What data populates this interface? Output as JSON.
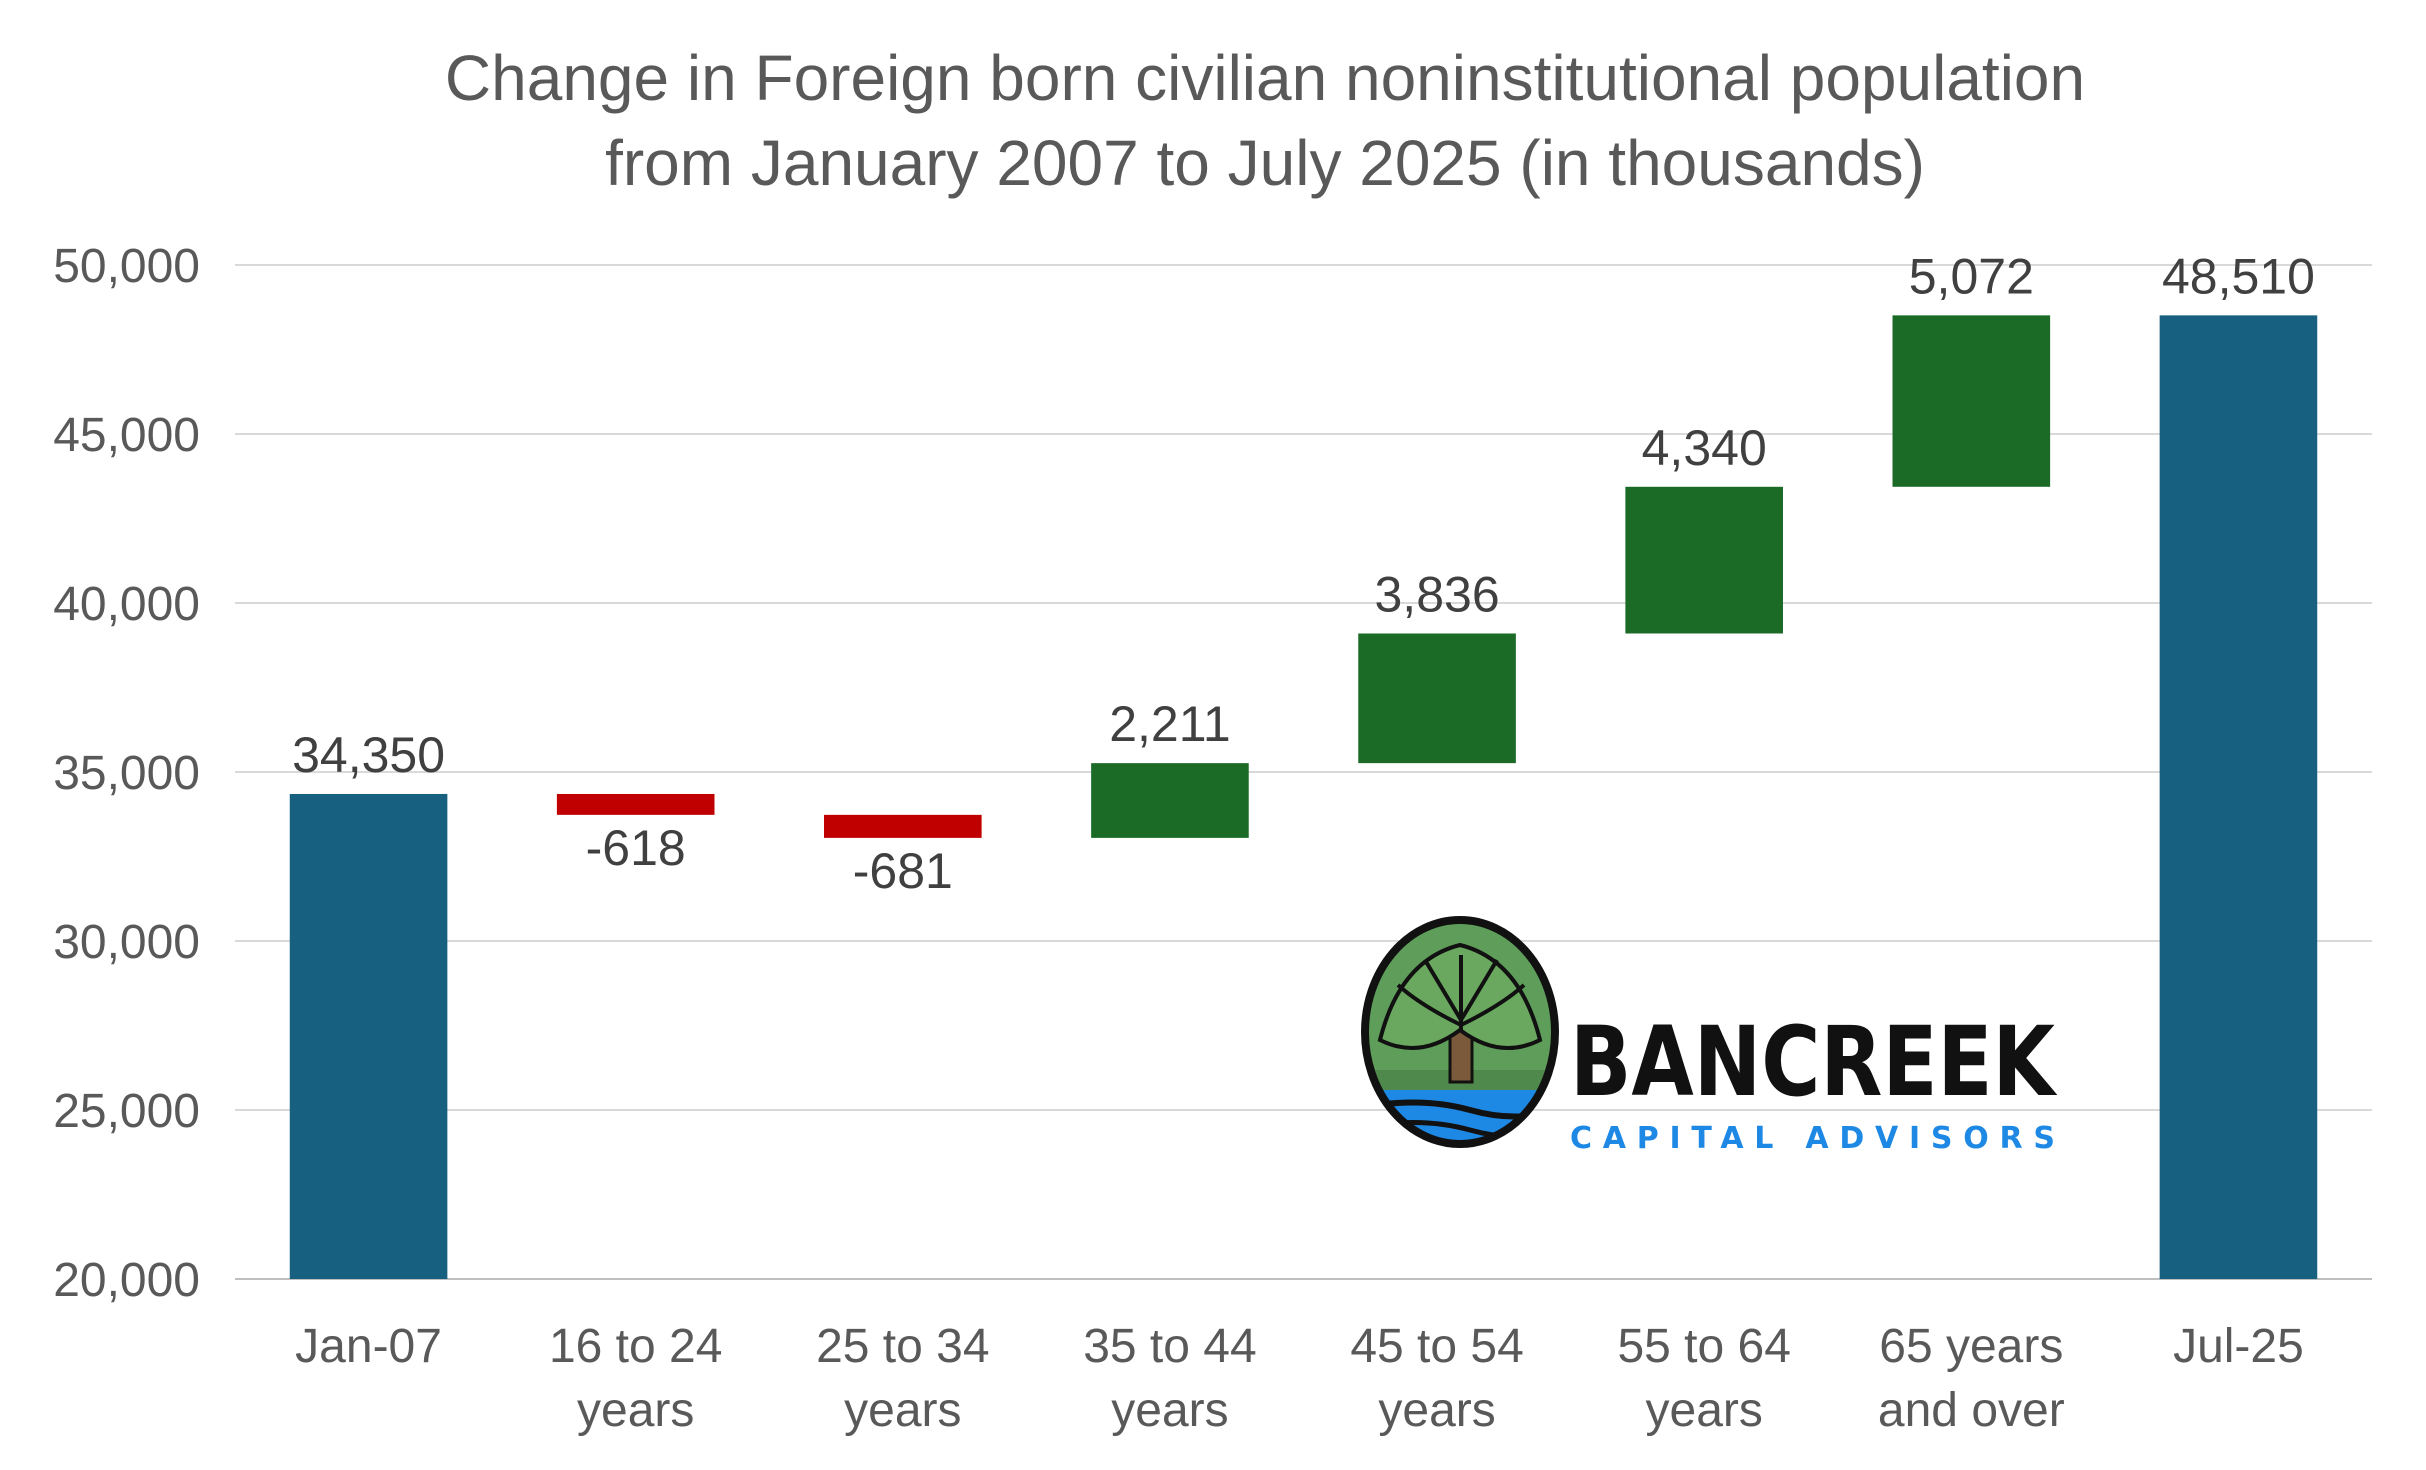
{
  "chart_data": {
    "type": "waterfall",
    "title": "Change in Foreign born civilian noninstitutional population from January 2007 to July 2025 (in thousands)",
    "title_lines": [
      "Change in Foreign born civilian noninstitutional population",
      "from January 2007 to July 2025 (in thousands)"
    ],
    "ylim": [
      20000,
      50000
    ],
    "yticks": [
      20000,
      25000,
      30000,
      35000,
      40000,
      45000,
      50000
    ],
    "ytick_labels": [
      "20,000",
      "25,000",
      "30,000",
      "35,000",
      "40,000",
      "45,000",
      "50,000"
    ],
    "grid": true,
    "legend": "none",
    "colors": {
      "total": "#17607f",
      "increase": "#1b6b27",
      "decrease": "#c00000",
      "grid": "#d9d9d9",
      "axis": "#bfbfbf"
    },
    "categories": [
      [
        "Jan-07"
      ],
      [
        "16 to 24",
        "years"
      ],
      [
        "25 to 34",
        "years"
      ],
      [
        "35 to 44",
        "years"
      ],
      [
        "45 to 54",
        "years"
      ],
      [
        "55 to 64",
        "years"
      ],
      [
        "65 years",
        "and over"
      ],
      [
        "Jul-25"
      ]
    ],
    "values": [
      34350,
      -618,
      -681,
      2211,
      3836,
      4340,
      5072,
      48510
    ],
    "value_labels": [
      "34,350",
      "-618",
      "-681",
      "2,211",
      "3,836",
      "4,340",
      "5,072",
      "48,510"
    ],
    "kinds": [
      "total",
      "change",
      "change",
      "change",
      "change",
      "change",
      "change",
      "total"
    ]
  },
  "logo": {
    "name": "BANCREEK",
    "tagline": "CAPITAL ADVISORS",
    "icon": "tree-river-icon"
  }
}
